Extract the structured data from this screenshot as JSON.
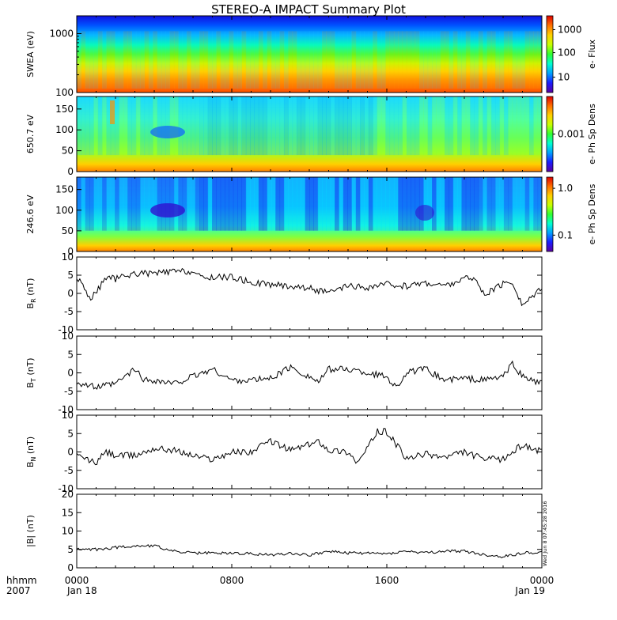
{
  "title": "STEREO-A IMPACT Summary Plot",
  "stamp": "Wed Jun  8 07:45:28 2016",
  "time_axis": {
    "row1_label": "hhmm",
    "row2_label": "2007",
    "ticks": [
      {
        "hour": 0,
        "top": "0000",
        "bottom": "Jan 18"
      },
      {
        "hour": 8,
        "top": "0800",
        "bottom": ""
      },
      {
        "hour": 16,
        "top": "1600",
        "bottom": ""
      },
      {
        "hour": 24,
        "top": "0000",
        "bottom": "Jan 19"
      }
    ],
    "range_hours": [
      0,
      24
    ]
  },
  "colors": {
    "colormap": [
      "#5a00a0",
      "#1a1cff",
      "#00a0ff",
      "#00ffd0",
      "#30ff30",
      "#c8ff00",
      "#ffd000",
      "#ff7000",
      "#e00000"
    ],
    "line": "#000000"
  },
  "chart_data": [
    {
      "type": "heatmap",
      "ylabel": "SWEA (eV)",
      "yscale": "log",
      "ylim": [
        100,
        2000
      ],
      "yticks": [
        "1000",
        "100"
      ],
      "colorbar": {
        "label": "e- Flux",
        "scale": "log",
        "ticks": [
          "1000",
          "100",
          "10"
        ]
      }
    },
    {
      "type": "heatmap",
      "ylabel": "650.7 eV",
      "ylim": [
        0,
        180
      ],
      "yticks": [
        "150",
        "100",
        "50",
        "0"
      ],
      "colorbar": {
        "label": "e- Ph Sp Dens",
        "scale": "log",
        "ticks": [
          "0.001"
        ]
      }
    },
    {
      "type": "heatmap",
      "ylabel": "246.6 eV",
      "ylim": [
        0,
        180
      ],
      "yticks": [
        "150",
        "100",
        "50",
        "0"
      ],
      "colorbar": {
        "label": "e- Ph Sp Dens",
        "scale": "log",
        "ticks": [
          "1.0",
          "0.1"
        ]
      }
    },
    {
      "type": "line",
      "ylabel": "BR (nT)",
      "ylabel_main": "B",
      "ylabel_sub": "R",
      "ylabel_unit": " (nT)",
      "ylim": [
        -10,
        10
      ],
      "yticks": [
        "10",
        "5",
        "0",
        "-5",
        "-10"
      ],
      "x_hours": [
        0,
        0.3,
        0.6,
        1,
        1.5,
        2,
        3,
        4,
        5,
        6,
        6.5,
        7,
        8,
        9,
        10,
        11,
        12,
        13,
        14,
        15,
        16,
        17,
        18,
        19,
        20,
        20.5,
        21,
        22,
        22.5,
        23,
        24
      ],
      "values": [
        4,
        3,
        -1.5,
        0,
        4.5,
        4,
        5.5,
        5.5,
        6,
        6,
        4,
        4.5,
        4.5,
        3,
        2.5,
        2,
        1.5,
        0,
        2,
        1.5,
        2.5,
        2,
        3,
        2,
        4,
        4.5,
        -0.5,
        2.5,
        3,
        -3.5,
        2
      ]
    },
    {
      "type": "line",
      "ylabel": "BT (nT)",
      "ylabel_main": "B",
      "ylabel_sub": "T",
      "ylabel_unit": " (nT)",
      "ylim": [
        -10,
        10
      ],
      "yticks": [
        "10",
        "5",
        "0",
        "-5",
        "-10"
      ],
      "x_hours": [
        0,
        1,
        2,
        3,
        3.5,
        4,
        5,
        6,
        7,
        8,
        9,
        10,
        11,
        12,
        12.5,
        13,
        14,
        15,
        16,
        16.5,
        17,
        18,
        19,
        20,
        21,
        22,
        22.5,
        23,
        24
      ],
      "values": [
        -2.5,
        -4,
        -3,
        1,
        -2,
        -2,
        -3,
        -1,
        1,
        -2,
        -2,
        -1.5,
        1.5,
        -1,
        -2.5,
        1,
        1,
        0,
        -1,
        -4,
        0,
        1,
        -2,
        -1.5,
        -2,
        -1,
        2.5,
        -1,
        -3
      ]
    },
    {
      "type": "line",
      "ylabel": "BN (nT)",
      "ylabel_main": "B",
      "ylabel_sub": "N",
      "ylabel_unit": " (nT)",
      "ylim": [
        -10,
        10
      ],
      "yticks": [
        "10",
        "5",
        "0",
        "-5",
        "-10"
      ],
      "x_hours": [
        0,
        1,
        1.5,
        2,
        3,
        4,
        5,
        6,
        7,
        8,
        9,
        10,
        11,
        12,
        12.5,
        13,
        14,
        14.5,
        15,
        15.5,
        16,
        16.5,
        17,
        18,
        19,
        20,
        21,
        22,
        23,
        24
      ],
      "values": [
        -1,
        -3,
        0,
        -1,
        -1,
        1,
        0.5,
        -1,
        -2,
        0,
        0,
        3,
        0.5,
        2,
        3,
        0.5,
        0,
        -3,
        1,
        5.5,
        5.5,
        2,
        -2,
        -0.5,
        -1.5,
        0,
        -2,
        -2,
        2,
        0
      ]
    },
    {
      "type": "line",
      "ylabel": "|B| (nT)",
      "ylabel_main": "|B|",
      "ylabel_sub": "",
      "ylabel_unit": " (nT)",
      "ylim": [
        0,
        20
      ],
      "yticks": [
        "20",
        "15",
        "10",
        "5",
        "0"
      ],
      "x_hours": [
        0,
        1,
        2,
        3,
        4,
        5,
        6,
        7,
        8,
        9,
        10,
        11,
        12,
        13,
        14,
        15,
        16,
        17,
        18,
        19,
        20,
        21,
        22,
        23,
        24
      ],
      "values": [
        5,
        5,
        5.5,
        6,
        6,
        4.5,
        4,
        4,
        4,
        3.8,
        3.5,
        4,
        3.5,
        4.5,
        4,
        4,
        3.8,
        4.5,
        4,
        4.5,
        4.5,
        3.5,
        3,
        4,
        4.2
      ]
    }
  ]
}
